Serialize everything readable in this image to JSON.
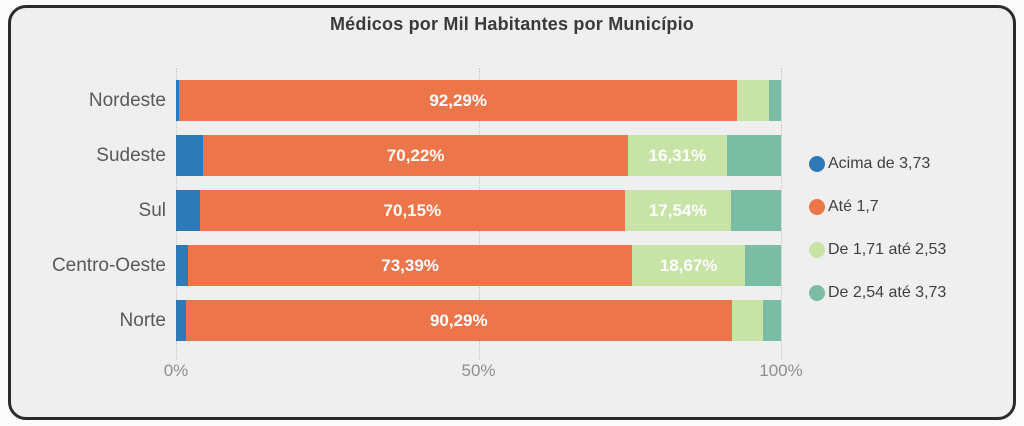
{
  "chart_data": {
    "type": "bar",
    "orientation": "horizontal",
    "stacked": true,
    "percent_stacked": true,
    "title": "Médicos por Mil Habitantes por Município",
    "categories": [
      "Nordeste",
      "Sudeste",
      "Sul",
      "Centro-Oeste",
      "Norte"
    ],
    "series": [
      {
        "name": "Acima de 3,73",
        "color": "#2e79b8",
        "values": [
          0.5,
          4.5,
          4.0,
          2.0,
          1.6
        ],
        "labels": [
          "",
          "",
          "",
          "",
          ""
        ]
      },
      {
        "name": "Até 1,7",
        "color": "#ec764a",
        "values": [
          92.29,
          70.22,
          70.15,
          73.39,
          90.29
        ],
        "labels": [
          "92,29%",
          "70,22%",
          "70,15%",
          "73,39%",
          "90,29%"
        ]
      },
      {
        "name": "De 1,71 até 2,53",
        "color": "#c7e4a6",
        "values": [
          5.2,
          16.31,
          17.54,
          18.67,
          5.2
        ],
        "labels": [
          "",
          "16,31%",
          "17,54%",
          "18,67%",
          ""
        ]
      },
      {
        "name": "De 2,54 até 3,73",
        "color": "#7bbca4",
        "values": [
          2.01,
          8.97,
          8.31,
          5.94,
          2.91
        ],
        "labels": [
          "",
          "",
          "",
          "",
          ""
        ]
      }
    ],
    "x_ticks": [
      {
        "label": "0%",
        "pos": 0
      },
      {
        "label": "50%",
        "pos": 50
      },
      {
        "label": "100%",
        "pos": 100
      }
    ],
    "xlim": [
      0,
      100
    ],
    "grid": "dotted-vertical",
    "legend_position": "right",
    "colors": {
      "card_background": "#efefef",
      "card_border": "#2b2b2b",
      "title_text": "#3a3a3a",
      "category_text": "#595959",
      "tick_text": "#8e8e8e",
      "legend_text": "#404040",
      "bar_label_text": "#ffffff"
    }
  }
}
